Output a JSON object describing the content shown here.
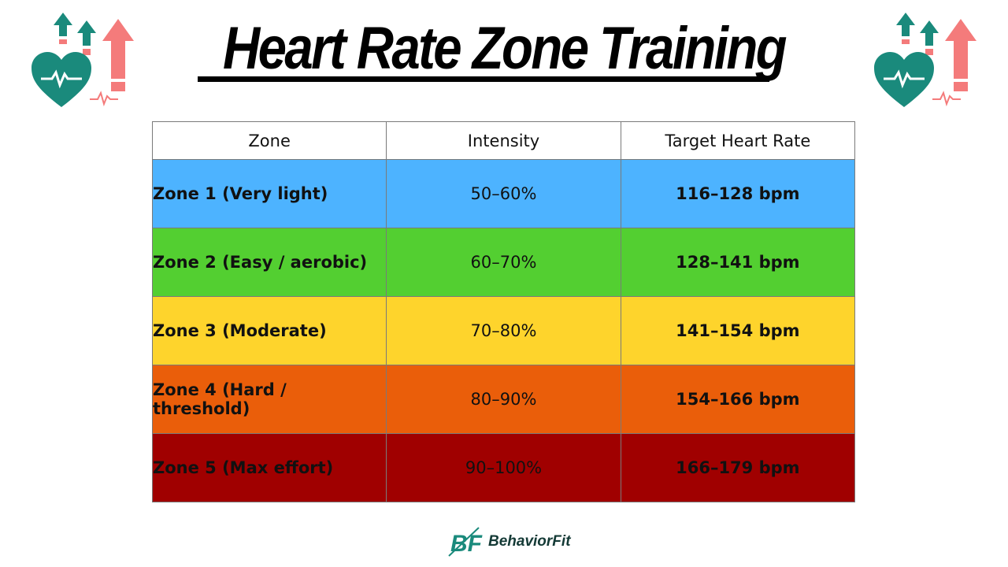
{
  "title": "Heart Rate Zone Training",
  "table": {
    "headers": [
      "Zone",
      "Intensity",
      "Target Heart Rate"
    ],
    "rows": [
      {
        "zone": "Zone 1 (Very light)",
        "intensity": "50–60%",
        "target": "116–128 bpm",
        "color": "#4db3ff"
      },
      {
        "zone": "Zone 2 (Easy / aerobic)",
        "intensity": "60–70%",
        "target": "128–141 bpm",
        "color": "#53cf31"
      },
      {
        "zone": "Zone 3 (Moderate)",
        "intensity": "70–80%",
        "target": "141–154 bpm",
        "color": "#fed42c"
      },
      {
        "zone": "Zone 4 (Hard / threshold)",
        "intensity": "80–90%",
        "target": "154–166 bpm",
        "color": "#ea5e0a"
      },
      {
        "zone": "Zone 5 (Max effort)",
        "intensity": "90–100%",
        "target": "166–179 bpm",
        "color": "#a00000"
      }
    ]
  },
  "brand": {
    "name": "BehaviorFit",
    "logo_letters": "BF"
  },
  "icons": {
    "corner_icon": "heart-rate-up-arrows-icon",
    "heart_color": "#1a8a7c",
    "arrow_color": "#f47b7b"
  }
}
